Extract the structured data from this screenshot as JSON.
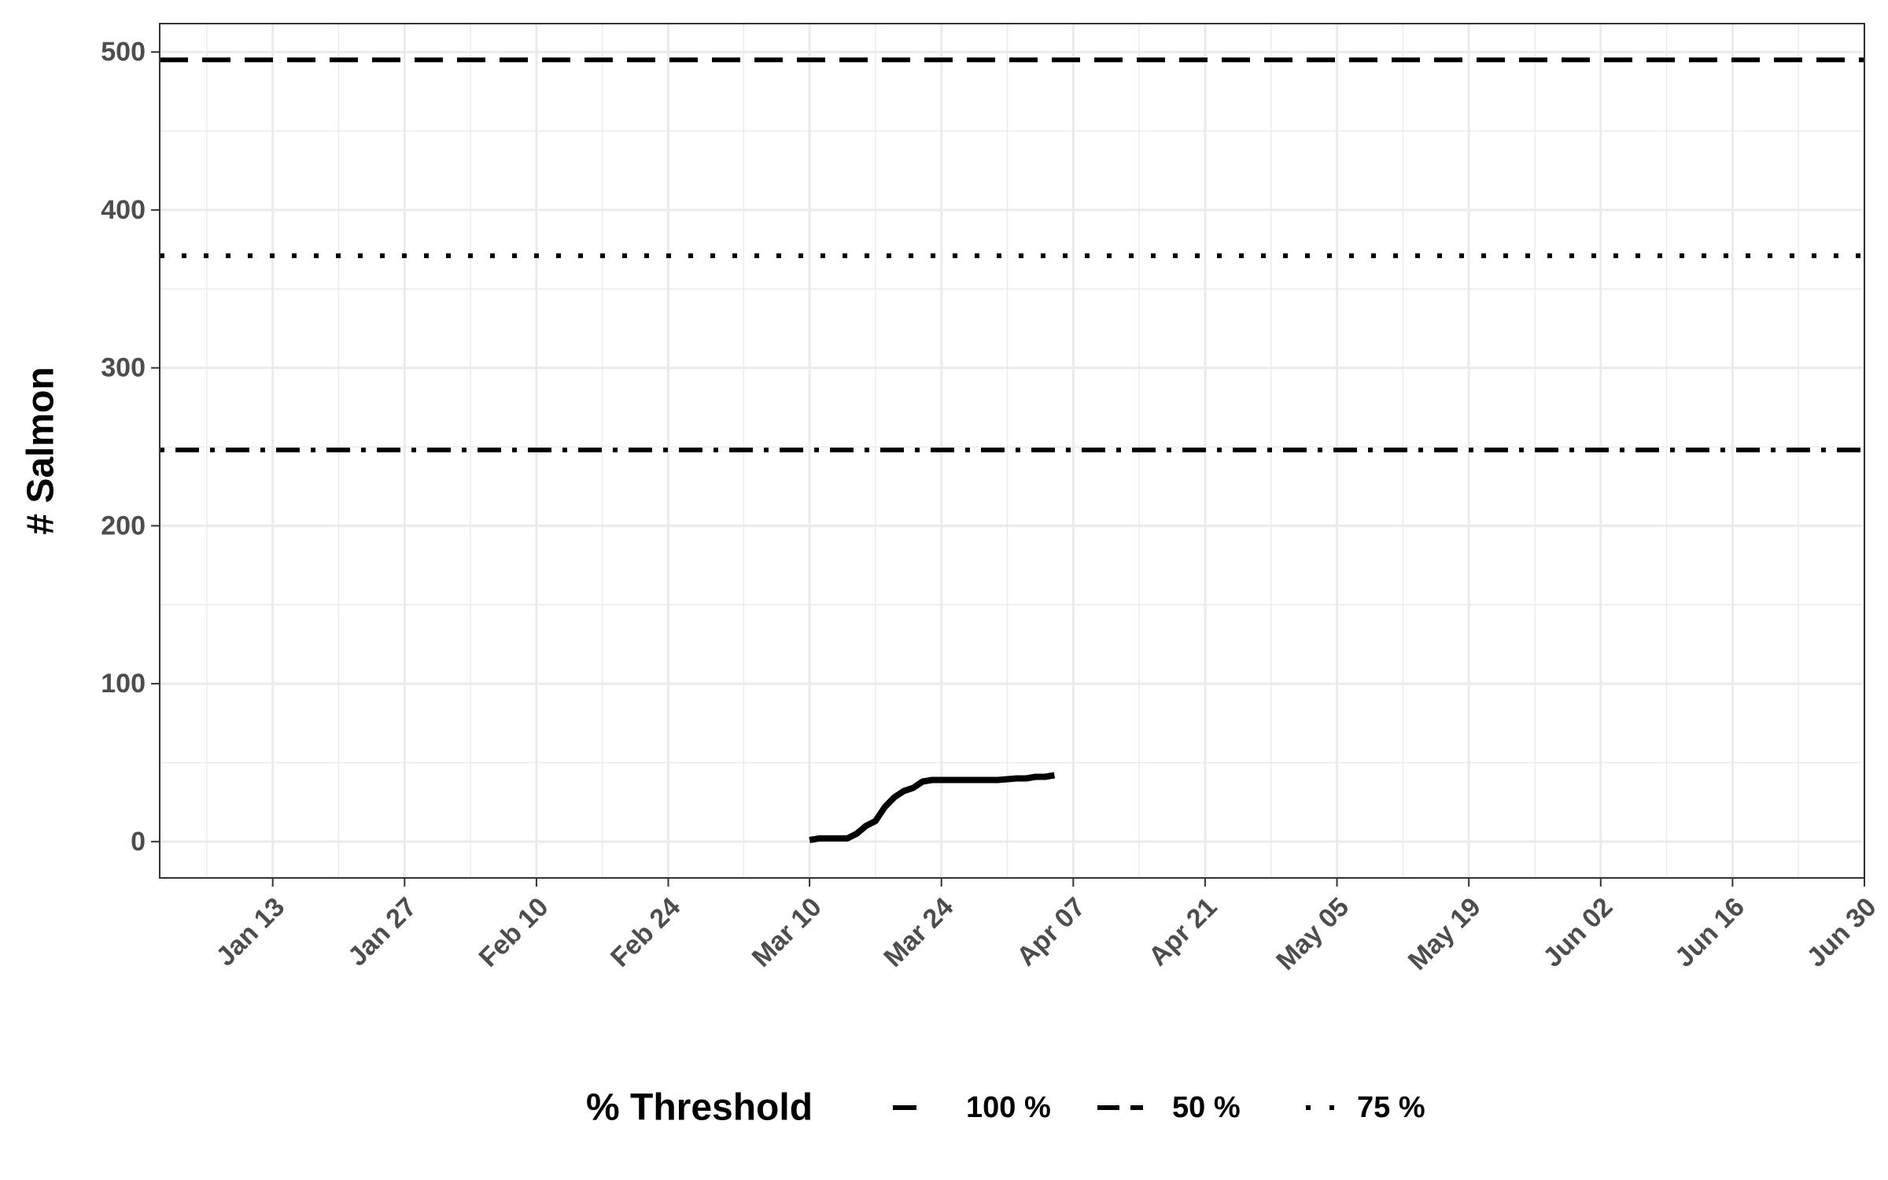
{
  "chart_data": {
    "type": "line",
    "xlabel": "",
    "ylabel": "# Salmon",
    "x_axis": {
      "type": "date",
      "range": [
        "2024-01-01",
        "2024-06-30"
      ],
      "tick_dates": [
        "2024-01-13",
        "2024-01-27",
        "2024-02-10",
        "2024-02-24",
        "2024-03-10",
        "2024-03-24",
        "2024-04-07",
        "2024-04-21",
        "2024-05-05",
        "2024-05-19",
        "2024-06-02",
        "2024-06-16",
        "2024-06-30"
      ],
      "tick_labels": [
        "Jan 13",
        "Jan 27",
        "Feb 10",
        "Feb 24",
        "Mar 10",
        "Mar 24",
        "Apr 07",
        "Apr 21",
        "May 05",
        "May 19",
        "Jun 02",
        "Jun 16",
        "Jun 30"
      ]
    },
    "y_axis": {
      "range": [
        -23,
        518
      ],
      "ticks": [
        0,
        100,
        200,
        300,
        400,
        500
      ],
      "tick_labels": [
        "0",
        "100",
        "200",
        "300",
        "400",
        "500"
      ]
    },
    "grid": true,
    "legend": {
      "title": "% Threshold",
      "placement": "bottom",
      "entries": [
        {
          "label": "100 %",
          "linetype": "solid"
        },
        {
          "label": "50 %",
          "linetype": "dashed"
        },
        {
          "label": "75 %",
          "linetype": "dotted"
        }
      ]
    },
    "thresholds": [
      {
        "value": 495,
        "linetype": "dashed"
      },
      {
        "value": 371,
        "linetype": "dotted"
      },
      {
        "value": 248,
        "linetype": "dotdash"
      }
    ],
    "series": [
      {
        "color": "#000000",
        "points": [
          {
            "x": "2024-03-10",
            "y": 1
          },
          {
            "x": "2024-03-11",
            "y": 2
          },
          {
            "x": "2024-03-12",
            "y": 2
          },
          {
            "x": "2024-03-13",
            "y": 2
          },
          {
            "x": "2024-03-14",
            "y": 2
          },
          {
            "x": "2024-03-15",
            "y": 5
          },
          {
            "x": "2024-03-16",
            "y": 10
          },
          {
            "x": "2024-03-17",
            "y": 13
          },
          {
            "x": "2024-03-18",
            "y": 22
          },
          {
            "x": "2024-03-19",
            "y": 28
          },
          {
            "x": "2024-03-20",
            "y": 32
          },
          {
            "x": "2024-03-21",
            "y": 34
          },
          {
            "x": "2024-03-22",
            "y": 38
          },
          {
            "x": "2024-03-23",
            "y": 39
          },
          {
            "x": "2024-03-24",
            "y": 39
          },
          {
            "x": "2024-03-26",
            "y": 39
          },
          {
            "x": "2024-03-28",
            "y": 39
          },
          {
            "x": "2024-03-30",
            "y": 39
          },
          {
            "x": "2024-04-01",
            "y": 40
          },
          {
            "x": "2024-04-02",
            "y": 40
          },
          {
            "x": "2024-04-03",
            "y": 41
          },
          {
            "x": "2024-04-04",
            "y": 41
          },
          {
            "x": "2024-04-05",
            "y": 42
          }
        ]
      }
    ]
  }
}
